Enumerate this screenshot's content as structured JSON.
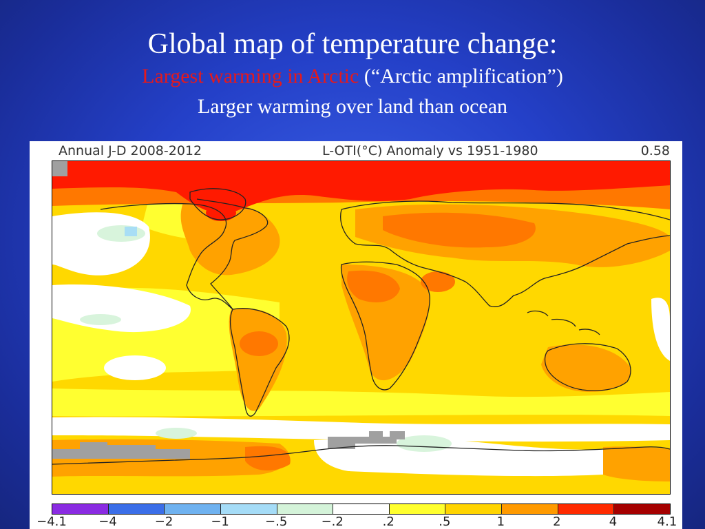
{
  "slide": {
    "title": "Global map of temperature change:",
    "subtitle_red": "Largest warming in Arctic",
    "subtitle_rest": " (“Arctic amplification”)",
    "subtitle2": "Larger warming over land than ocean"
  },
  "figure": {
    "header_left": "Annual J-D 2008-2012",
    "header_mid": "L-OTI(°C) Anomaly vs 1951-1980",
    "header_right": "0.58"
  },
  "colorbar": {
    "ticks": [
      "−4.1",
      "−4",
      "−2",
      "−1",
      "−.5",
      "−.2",
      ".2",
      ".5",
      "1",
      "2",
      "4",
      "4.1"
    ],
    "colors": [
      "#8a2be2",
      "#3b6ee8",
      "#6fb2f0",
      "#a5dcf7",
      "#d4f3d9",
      "#ffffff",
      "#ffff2e",
      "#ffd400",
      "#ff9a00",
      "#ff2a00",
      "#a50000"
    ]
  },
  "map_colors": {
    "white": "#ffffff",
    "light_yellow": "#ffff30",
    "yellow": "#ffd800",
    "orange": "#ffa200",
    "dark_orange": "#ff7800",
    "red": "#ff1a00",
    "light_blue": "#a8def5",
    "pale_green": "#d8f4dc",
    "gray": "#a0a0a0",
    "coastline": "#222222"
  }
}
